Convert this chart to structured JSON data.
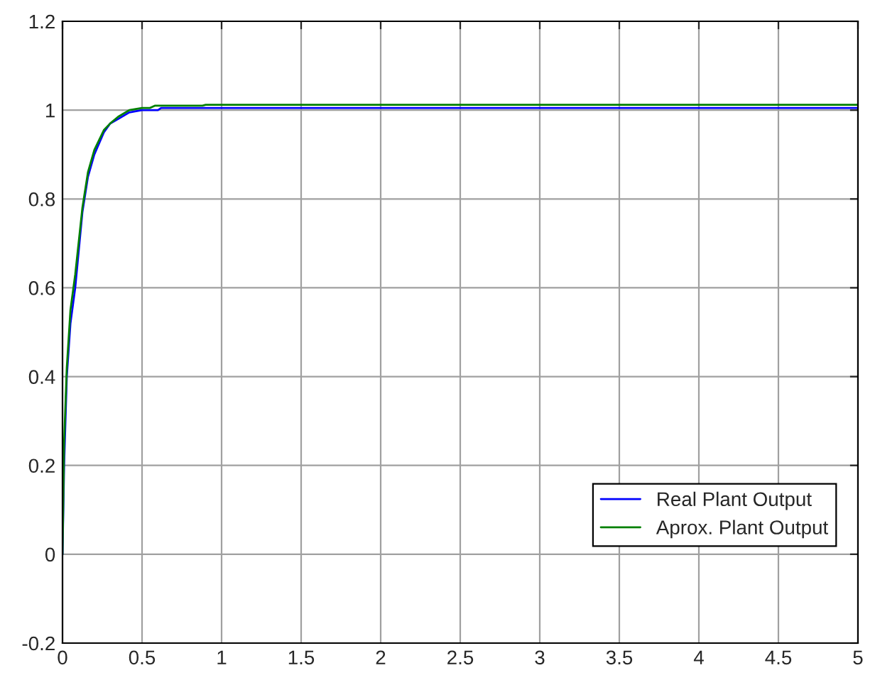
{
  "chart_data": {
    "type": "line",
    "series": [
      {
        "name": "Real Plant Output",
        "color": "#0000ff",
        "x": [
          0,
          0.01,
          0.027,
          0.05,
          0.08,
          0.125,
          0.16,
          0.2,
          0.26,
          0.3,
          0.35,
          0.42,
          0.5,
          0.6,
          0.62,
          1.0,
          2.0,
          3.0,
          4.0,
          5.0
        ],
        "values": [
          0,
          0.2,
          0.4,
          0.52,
          0.6,
          0.77,
          0.85,
          0.9,
          0.95,
          0.97,
          0.98,
          0.995,
          1.0,
          1.0,
          1.005,
          1.005,
          1.005,
          1.005,
          1.005,
          1.005
        ]
      },
      {
        "name": "Aprox. Plant Output",
        "color": "#008000",
        "x": [
          0,
          0.01,
          0.027,
          0.05,
          0.08,
          0.125,
          0.16,
          0.2,
          0.26,
          0.3,
          0.35,
          0.42,
          0.5,
          0.55,
          0.58,
          0.88,
          0.9,
          2.0,
          3.0,
          4.0,
          5.0
        ],
        "values": [
          0,
          0.25,
          0.42,
          0.55,
          0.63,
          0.78,
          0.86,
          0.91,
          0.955,
          0.97,
          0.985,
          1.0,
          1.005,
          1.005,
          1.01,
          1.01,
          1.012,
          1.012,
          1.012,
          1.012,
          1.012
        ]
      }
    ],
    "xlim": [
      0,
      5
    ],
    "xticks": [
      0,
      0.5,
      1,
      1.5,
      2,
      2.5,
      3,
      3.5,
      4,
      4.5,
      5
    ],
    "ylim": [
      -0.2,
      1.2
    ],
    "yticks": [
      -0.2,
      0,
      0.2,
      0.4,
      0.6,
      0.8,
      1,
      1.2
    ],
    "grid": true,
    "legend": "bottom right"
  }
}
